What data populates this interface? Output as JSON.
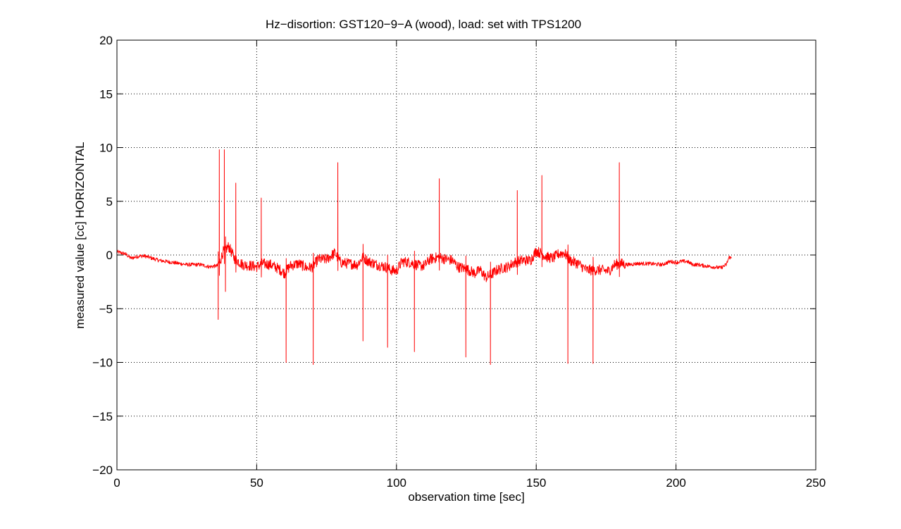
{
  "chart_data": {
    "type": "line",
    "title": "Hz−disortion: GST120−9−A (wood), load: set with TPS1200",
    "xlabel": "observation time [sec]",
    "ylabel": "measured value [cc] HORIZONTAL",
    "xlim": [
      0,
      250
    ],
    "ylim": [
      -20,
      20
    ],
    "xticks": [
      0,
      50,
      100,
      150,
      200,
      250
    ],
    "yticks": [
      -20,
      -15,
      -10,
      -5,
      0,
      5,
      10,
      15,
      20
    ],
    "xtick_labels": [
      "0",
      "50",
      "100",
      "150",
      "200",
      "250"
    ],
    "ytick_labels": [
      "−20",
      "−15",
      "−10",
      "−5",
      "0",
      "5",
      "10",
      "15",
      "20"
    ],
    "grid": true,
    "series": [
      {
        "color": "#ff0000",
        "baseline": [
          [
            0,
            0.3
          ],
          [
            3,
            0.1
          ],
          [
            5,
            -0.3
          ],
          [
            8,
            -0.1
          ],
          [
            10,
            -0.1
          ],
          [
            15,
            -0.5
          ],
          [
            20,
            -0.7
          ],
          [
            25,
            -0.9
          ],
          [
            30,
            -0.9
          ],
          [
            33,
            -1.1
          ],
          [
            36,
            -1.0
          ],
          [
            37,
            -0.5
          ],
          [
            38,
            0.3
          ],
          [
            40,
            0.8
          ],
          [
            42,
            -0.3
          ],
          [
            45,
            -0.9
          ],
          [
            48,
            -1.0
          ],
          [
            50,
            -1.1
          ],
          [
            52,
            -0.8
          ],
          [
            55,
            -0.9
          ],
          [
            58,
            -1.3
          ],
          [
            60,
            -1.7
          ],
          [
            62,
            -1.0
          ],
          [
            65,
            -0.8
          ],
          [
            68,
            -1.2
          ],
          [
            70,
            -1.1
          ],
          [
            72,
            -0.4
          ],
          [
            75,
            -0.4
          ],
          [
            78,
            0.2
          ],
          [
            80,
            -0.7
          ],
          [
            83,
            -0.8
          ],
          [
            86,
            -0.9
          ],
          [
            88,
            -0.2
          ],
          [
            90,
            -0.6
          ],
          [
            93,
            -0.9
          ],
          [
            96,
            -1.1
          ],
          [
            98,
            -1.4
          ],
          [
            100,
            -1.5
          ],
          [
            102,
            -0.6
          ],
          [
            105,
            -0.7
          ],
          [
            108,
            -1.0
          ],
          [
            110,
            -1.0
          ],
          [
            112,
            -0.4
          ],
          [
            115,
            -0.2
          ],
          [
            118,
            -0.4
          ],
          [
            120,
            -0.5
          ],
          [
            122,
            -1.1
          ],
          [
            125,
            -1.3
          ],
          [
            128,
            -1.7
          ],
          [
            130,
            -1.4
          ],
          [
            132,
            -2.1
          ],
          [
            134,
            -1.8
          ],
          [
            136,
            -1.4
          ],
          [
            138,
            -1.2
          ],
          [
            140,
            -1.1
          ],
          [
            142,
            -0.7
          ],
          [
            145,
            -0.5
          ],
          [
            148,
            -0.5
          ],
          [
            150,
            0.4
          ],
          [
            152,
            0.1
          ],
          [
            154,
            -0.2
          ],
          [
            156,
            -0.3
          ],
          [
            158,
            0.1
          ],
          [
            160,
            0.2
          ],
          [
            162,
            -0.5
          ],
          [
            165,
            -0.8
          ],
          [
            168,
            -1.4
          ],
          [
            170,
            -1.4
          ],
          [
            173,
            -1.4
          ],
          [
            176,
            -1.5
          ],
          [
            178,
            -0.9
          ],
          [
            180,
            -0.8
          ],
          [
            183,
            -0.9
          ],
          [
            186,
            -0.8
          ],
          [
            190,
            -0.8
          ],
          [
            195,
            -0.9
          ],
          [
            198,
            -0.6
          ],
          [
            200,
            -0.7
          ],
          [
            202,
            -0.6
          ],
          [
            204,
            -0.6
          ],
          [
            206,
            -0.9
          ],
          [
            208,
            -0.9
          ],
          [
            210,
            -1.0
          ],
          [
            213,
            -1.1
          ],
          [
            216,
            -1.2
          ],
          [
            218,
            -0.9
          ],
          [
            219,
            -0.2
          ],
          [
            220,
            -0.3
          ]
        ],
        "spikes": [
          [
            36.2,
            -6.0
          ],
          [
            36.6,
            9.8
          ],
          [
            38.4,
            9.8
          ],
          [
            38.8,
            -3.4
          ],
          [
            42.5,
            6.7
          ],
          [
            51.6,
            5.3
          ],
          [
            60.5,
            -10.0
          ],
          [
            70.2,
            -10.2
          ],
          [
            79.0,
            8.6
          ],
          [
            88.0,
            -8.0
          ],
          [
            96.8,
            -8.6
          ],
          [
            106.4,
            -9.0
          ],
          [
            115.3,
            7.1
          ],
          [
            124.8,
            -9.5
          ],
          [
            133.6,
            -10.2
          ],
          [
            143.2,
            6.0
          ],
          [
            152.0,
            7.4
          ],
          [
            161.3,
            -10.1
          ],
          [
            170.3,
            -10.1
          ],
          [
            179.7,
            8.6
          ]
        ]
      }
    ]
  }
}
